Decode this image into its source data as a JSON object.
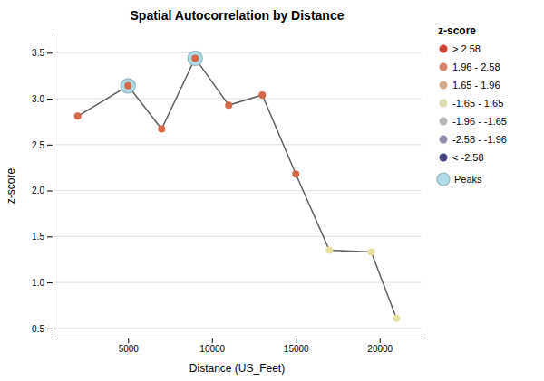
{
  "chart_data": {
    "type": "line",
    "title": "Spatial Autocorrelation by Distance",
    "xlabel": "Distance (US_Feet)",
    "ylabel": "z-score",
    "x": [
      2000,
      5000,
      7000,
      9000,
      11000,
      13000,
      15000,
      17000,
      19500,
      21000
    ],
    "values": [
      2.81,
      3.14,
      2.67,
      3.44,
      2.93,
      3.04,
      2.18,
      1.35,
      1.33,
      0.61
    ],
    "colors": [
      "#d4694a",
      "#d4694a",
      "#d4694a",
      "#d4694a",
      "#d4694a",
      "#d4694a",
      "#d4694a",
      "#e8e0a0",
      "#e8e0a0",
      "#e8e0a0"
    ],
    "color": "#606060",
    "marker": "circle",
    "peaks": {
      "name": "Peaks",
      "x": [
        5000,
        9000
      ],
      "color": "#b0dce8"
    },
    "xlim": [
      500,
      22500
    ],
    "ylim": [
      0.4,
      3.7
    ],
    "xticks": [
      5000,
      10000,
      15000,
      20000
    ],
    "yticks": [
      0.5,
      {
        "value": 1,
        "label": "1.0"
      },
      1.5,
      {
        "value": 2,
        "label": "2.0"
      },
      2.5,
      {
        "value": 3,
        "label": "3.0"
      },
      3.5
    ],
    "grid": true,
    "legend": "right",
    "legend_title": "z-score",
    "legend_entries": [
      {
        "label": "> 2.58",
        "color": "#cc4433"
      },
      {
        "label": "1.96 - 2.58",
        "color": "#d4836a"
      },
      {
        "label": "1.65 - 1.96",
        "color": "#d4aa88"
      },
      {
        "label": "-1.65 - 1.65",
        "color": "#ddddb0"
      },
      {
        "label": "-1.96 - -1.65",
        "color": "#b8b8b8"
      },
      {
        "label": "-2.58 - -1.96",
        "color": "#9090aa"
      },
      {
        "label": "< -2.58",
        "color": "#444480"
      }
    ]
  }
}
